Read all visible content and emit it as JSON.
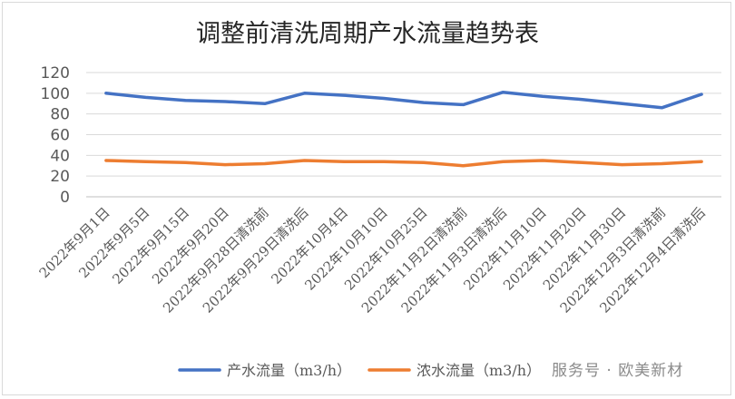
{
  "chart_data": {
    "type": "line",
    "title": "调整前清洗周期产水流量趋势表",
    "xlabel": "",
    "ylabel": "",
    "ylim": [
      0,
      120
    ],
    "yticks": [
      0,
      20,
      40,
      60,
      80,
      100,
      120
    ],
    "grid": true,
    "legend_position": "bottom",
    "categories": [
      "2022年9月1日",
      "2022年9月5日",
      "2022年9月15日",
      "2022年9月20日",
      "2022年9月28日清洗前",
      "2022年9月29日清洗后",
      "2022年10月4日",
      "2022年10月10日",
      "2022年10月25日",
      "2022年11月2日清洗前",
      "2022年11月3日清洗后",
      "2022年11月10日",
      "2022年11月20日",
      "2022年11月30日",
      "2022年12月3日清洗前",
      "2022年12月4日清洗后"
    ],
    "series": [
      {
        "name": "产水流量（m3/h）",
        "color": "#4472c4",
        "values": [
          100,
          96,
          93,
          92,
          90,
          100,
          98,
          95,
          91,
          89,
          101,
          97,
          94,
          90,
          86,
          99
        ]
      },
      {
        "name": "浓水流量（m3/h）",
        "color": "#ed7d31",
        "values": [
          35,
          34,
          33,
          31,
          32,
          35,
          34,
          34,
          33,
          30,
          34,
          35,
          33,
          31,
          32,
          34
        ]
      }
    ]
  },
  "watermark": "服务号 · 欧美新材"
}
